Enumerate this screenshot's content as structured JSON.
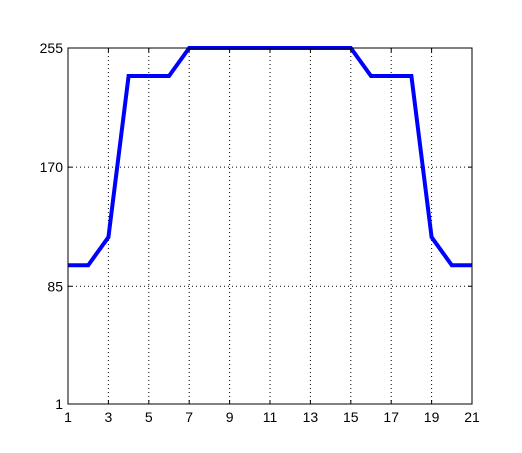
{
  "chart_data": {
    "type": "line",
    "title": "",
    "xlabel": "",
    "ylabel": "",
    "x": [
      1,
      2,
      3,
      4,
      5,
      6,
      7,
      8,
      9,
      10,
      11,
      12,
      13,
      14,
      15,
      16,
      17,
      18,
      19,
      20,
      21
    ],
    "series": [
      {
        "values": [
          100,
          100,
          120,
          235,
          235,
          235,
          255,
          255,
          255,
          255,
          255,
          255,
          255,
          255,
          255,
          235,
          235,
          235,
          120,
          100,
          100
        ],
        "color": "#0000ff"
      }
    ],
    "xlim": [
      1,
      21
    ],
    "ylim": [
      1,
      255
    ],
    "xticks": [
      1,
      3,
      5,
      7,
      9,
      11,
      13,
      15,
      17,
      19,
      21
    ],
    "xtick_labels": [
      "1",
      "3",
      "5",
      "7",
      "9",
      "11",
      "13",
      "15",
      "17",
      "19",
      "21"
    ],
    "yticks": [
      1,
      85,
      170,
      255
    ],
    "ytick_labels": [
      "1",
      "85",
      "170",
      "255"
    ],
    "grid": true,
    "legend": "none"
  }
}
